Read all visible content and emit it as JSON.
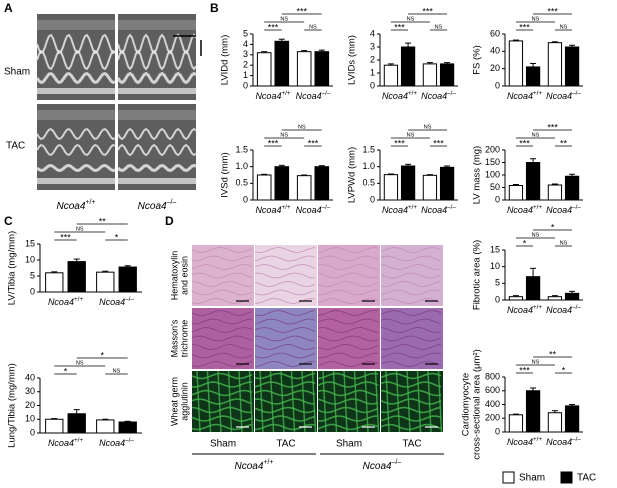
{
  "panel_labels": [
    "A",
    "B",
    "C",
    "D"
  ],
  "groups": {
    "gene": "Ncoa4",
    "genotypes": [
      "+/+",
      "–/–"
    ]
  },
  "legend": [
    {
      "name": "Sham",
      "color": "#ffffff"
    },
    {
      "name": "TAC",
      "color": "#000000"
    }
  ],
  "echo": {
    "rows": [
      "Sham",
      "TAC"
    ]
  },
  "histology": {
    "stains": [
      [
        "Hematoxylin",
        "and eosin"
      ],
      [
        "Masson's",
        "trichrome"
      ],
      [
        "Wheat germ",
        "agglutinin"
      ]
    ],
    "columns": [
      "Sham",
      "TAC",
      "Sham",
      "TAC"
    ]
  },
  "chart_data": [
    {
      "type": "bar",
      "ylabel": "LVIDd (mm)",
      "ylim": [
        0,
        5
      ],
      "yticks": [
        0,
        1,
        2,
        3,
        4,
        5
      ],
      "values": [
        3.2,
        4.3,
        3.3,
        3.3
      ],
      "errors": [
        0.1,
        0.2,
        0.1,
        0.15
      ],
      "comparisons": [
        {
          "bars": [
            0,
            1
          ],
          "label": "***"
        },
        {
          "bars": [
            2,
            3
          ],
          "label": "NS"
        },
        {
          "bars": [
            0,
            2
          ],
          "label": "NS"
        },
        {
          "bars": [
            1,
            3
          ],
          "label": "***"
        }
      ]
    },
    {
      "type": "bar",
      "ylabel": "LVIDs (mm)",
      "ylim": [
        0,
        4
      ],
      "yticks": [
        0,
        1,
        2,
        3,
        4
      ],
      "values": [
        1.6,
        3.0,
        1.7,
        1.7
      ],
      "errors": [
        0.1,
        0.3,
        0.1,
        0.1
      ],
      "comparisons": [
        {
          "bars": [
            0,
            1
          ],
          "label": "***"
        },
        {
          "bars": [
            2,
            3
          ],
          "label": "NS"
        },
        {
          "bars": [
            0,
            2
          ],
          "label": "NS"
        },
        {
          "bars": [
            1,
            3
          ],
          "label": "***"
        }
      ]
    },
    {
      "type": "bar",
      "ylabel": "FS (%)",
      "ylim": [
        0,
        60
      ],
      "yticks": [
        0,
        20,
        40,
        60
      ],
      "values": [
        52,
        22,
        50,
        45
      ],
      "errors": [
        1,
        4,
        1,
        2
      ],
      "comparisons": [
        {
          "bars": [
            0,
            1
          ],
          "label": "***"
        },
        {
          "bars": [
            2,
            3
          ],
          "label": "NS"
        },
        {
          "bars": [
            0,
            2
          ],
          "label": "NS"
        },
        {
          "bars": [
            1,
            3
          ],
          "label": "***"
        }
      ]
    },
    {
      "type": "bar",
      "ylabel": "IVSd (mm)",
      "ylim": [
        0,
        1.5
      ],
      "yticks": [
        0,
        0.5,
        {
          "value": 1,
          "label": "1.0"
        },
        1.5
      ],
      "values": [
        0.75,
        1.0,
        0.73,
        1.0
      ],
      "errors": [
        0.02,
        0.04,
        0.02,
        0.03
      ],
      "comparisons": [
        {
          "bars": [
            0,
            1
          ],
          "label": "***"
        },
        {
          "bars": [
            2,
            3
          ],
          "label": "***"
        },
        {
          "bars": [
            0,
            2
          ],
          "label": "NS"
        },
        {
          "bars": [
            1,
            3
          ],
          "label": "NS"
        }
      ]
    },
    {
      "type": "bar",
      "ylabel": "LVPWd (mm)",
      "ylim": [
        0,
        1.5
      ],
      "yticks": [
        0,
        0.5,
        {
          "value": 1,
          "label": "1.0"
        },
        1.5
      ],
      "values": [
        0.76,
        1.02,
        0.74,
        0.98
      ],
      "errors": [
        0.02,
        0.05,
        0.02,
        0.04
      ],
      "comparisons": [
        {
          "bars": [
            0,
            1
          ],
          "label": "***"
        },
        {
          "bars": [
            2,
            3
          ],
          "label": "***"
        },
        {
          "bars": [
            0,
            2
          ],
          "label": "NS"
        },
        {
          "bars": [
            1,
            3
          ],
          "label": "NS"
        }
      ]
    },
    {
      "type": "bar",
      "ylabel": "LV mass (mg)",
      "ylim": [
        0,
        200
      ],
      "yticks": [
        0,
        50,
        100,
        150,
        200
      ],
      "values": [
        58,
        150,
        60,
        95
      ],
      "errors": [
        4,
        15,
        4,
        8
      ],
      "comparisons": [
        {
          "bars": [
            0,
            1
          ],
          "label": "***"
        },
        {
          "bars": [
            2,
            3
          ],
          "label": "**"
        },
        {
          "bars": [
            0,
            2
          ],
          "label": "NS"
        },
        {
          "bars": [
            1,
            3
          ],
          "label": "***"
        }
      ]
    },
    {
      "type": "bar",
      "ylabel": "LV/Tibia (mg/mm)",
      "ylim": [
        0,
        15
      ],
      "yticks": [
        0,
        5,
        10,
        15
      ],
      "values": [
        6,
        9.5,
        6.2,
        7.8
      ],
      "errors": [
        0.3,
        0.8,
        0.3,
        0.4
      ],
      "comparisons": [
        {
          "bars": [
            0,
            1
          ],
          "label": "***"
        },
        {
          "bars": [
            2,
            3
          ],
          "label": "*"
        },
        {
          "bars": [
            0,
            2
          ],
          "label": "NS"
        },
        {
          "bars": [
            1,
            3
          ],
          "label": "**"
        }
      ]
    },
    {
      "type": "bar",
      "ylabel": "Lung/Tibia (mg/mm)",
      "ylim": [
        0,
        40
      ],
      "yticks": [
        0,
        10,
        20,
        30,
        40
      ],
      "values": [
        10,
        14,
        9.5,
        8
      ],
      "errors": [
        0.5,
        3,
        0.5,
        0.5
      ],
      "comparisons": [
        {
          "bars": [
            0,
            1
          ],
          "label": "*"
        },
        {
          "bars": [
            2,
            3
          ],
          "label": "NS"
        },
        {
          "bars": [
            0,
            2
          ],
          "label": "NS"
        },
        {
          "bars": [
            1,
            3
          ],
          "label": "*"
        }
      ]
    },
    {
      "type": "bar",
      "ylabel": "Fibrotic area (%)",
      "ylim": [
        0,
        15
      ],
      "yticks": [
        0,
        5,
        10,
        15
      ],
      "values": [
        1,
        7,
        1,
        2
      ],
      "errors": [
        0.3,
        2.5,
        0.3,
        0.6
      ],
      "comparisons": [
        {
          "bars": [
            0,
            1
          ],
          "label": "*"
        },
        {
          "bars": [
            2,
            3
          ],
          "label": "NS"
        },
        {
          "bars": [
            0,
            2
          ],
          "label": "NS"
        },
        {
          "bars": [
            1,
            3
          ],
          "label": "*"
        }
      ]
    },
    {
      "type": "bar",
      "ylabel": [
        "Cardiomyocyte",
        "cross-sectional area (μm²)"
      ],
      "ylim": [
        0,
        800
      ],
      "yticks": [
        0,
        200,
        400,
        600,
        800
      ],
      "values": [
        250,
        600,
        280,
        380
      ],
      "errors": [
        10,
        40,
        30,
        20
      ],
      "comparisons": [
        {
          "bars": [
            0,
            1
          ],
          "label": "***"
        },
        {
          "bars": [
            2,
            3
          ],
          "label": "*"
        },
        {
          "bars": [
            0,
            2
          ],
          "label": "NS"
        },
        {
          "bars": [
            1,
            3
          ],
          "label": "**"
        }
      ]
    }
  ]
}
